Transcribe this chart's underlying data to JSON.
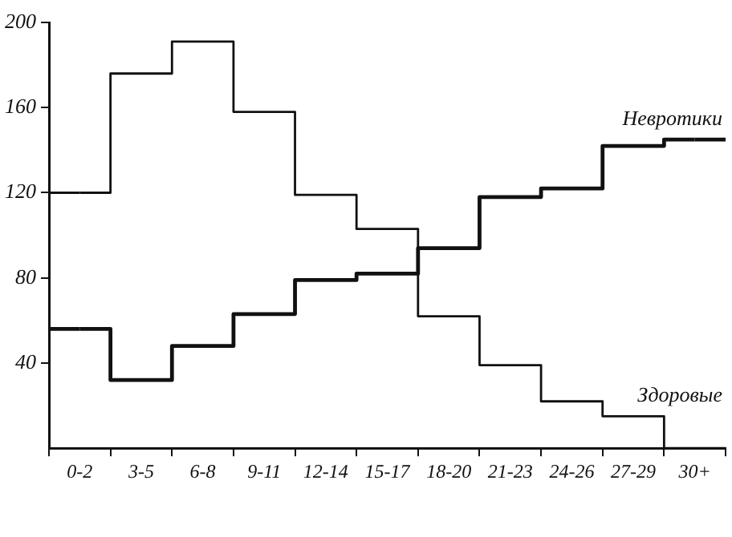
{
  "chart_data": {
    "type": "step",
    "categories": [
      "0-2",
      "3-5",
      "6-8",
      "9-11",
      "12-14",
      "15-17",
      "18-20",
      "21-23",
      "24-26",
      "27-29",
      "30+"
    ],
    "series": [
      {
        "name": "Невротики",
        "color": "#111111",
        "values": [
          56,
          32,
          48,
          63,
          79,
          82,
          94,
          118,
          122,
          142,
          145
        ]
      },
      {
        "name": "Здоровые",
        "color": "#111111",
        "values": [
          120,
          176,
          191,
          158,
          119,
          103,
          62,
          39,
          22,
          15,
          0
        ]
      }
    ],
    "ylim": [
      0,
      200
    ],
    "yticks": [
      40,
      80,
      120,
      160,
      200
    ],
    "grid": false,
    "legend": false
  }
}
